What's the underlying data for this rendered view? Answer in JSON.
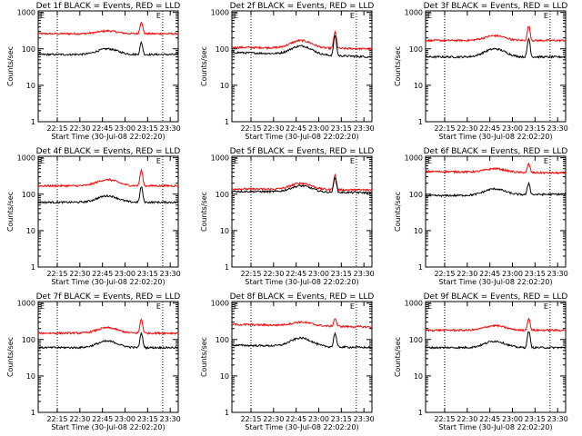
{
  "figure": {
    "xlabel": "Start Time (30-Jul-08 22:02:20)",
    "ylabel": "Counts/sec",
    "x_ticks": [
      "22:15",
      "22:30",
      "22:45",
      "23:00",
      "23:15",
      "23:30"
    ],
    "y_ticks": [
      "1",
      "10",
      "100",
      "1000"
    ]
  },
  "colors": {
    "events": "#000000",
    "lld": "#ff0000"
  },
  "chart_data": [
    {
      "type": "line",
      "title": "Det 1f BLACK = Events, RED = LLD",
      "markers": [
        "E",
        "E"
      ],
      "xlim_min": [
        0,
        93
      ],
      "ylim": [
        1,
        1100
      ],
      "y_scale": "log",
      "lld_base": [
        260,
        260
      ],
      "lld_peak": 310,
      "lld_flare": 560,
      "events_base": [
        70,
        70
      ],
      "events_peak": 100,
      "events_flare": 150
    },
    {
      "type": "line",
      "title": "Det 2f BLACK = Events, RED = LLD",
      "markers": [
        "E",
        "E"
      ],
      "xlim_min": [
        0,
        93
      ],
      "ylim": [
        1,
        1100
      ],
      "y_scale": "log",
      "lld_base": [
        110,
        100
      ],
      "lld_peak": 170,
      "lld_flare": 280,
      "events_base": [
        80,
        60
      ],
      "events_peak": 120,
      "events_flare": 230
    },
    {
      "type": "line",
      "title": "Det 3f BLACK = Events, RED = LLD",
      "markers": [
        "E",
        "E"
      ],
      "xlim_min": [
        0,
        93
      ],
      "ylim": [
        1,
        1100
      ],
      "y_scale": "log",
      "lld_base": [
        170,
        170
      ],
      "lld_peak": 230,
      "lld_flare": 420,
      "events_base": [
        60,
        60
      ],
      "events_peak": 100,
      "events_flare": 190
    },
    {
      "type": "line",
      "title": "Det 4f BLACK = Events, RED = LLD",
      "markers": [
        "E",
        "E"
      ],
      "xlim_min": [
        0,
        93
      ],
      "ylim": [
        1,
        1100
      ],
      "y_scale": "log",
      "lld_base": [
        170,
        170
      ],
      "lld_peak": 250,
      "lld_flare": 450,
      "events_base": [
        60,
        60
      ],
      "events_peak": 90,
      "events_flare": 160
    },
    {
      "type": "line",
      "title": "Det 5f BLACK = Events, RED = LLD",
      "markers": [
        "E",
        "E"
      ],
      "xlim_min": [
        0,
        93
      ],
      "ylim": [
        1,
        1100
      ],
      "y_scale": "log",
      "lld_base": [
        140,
        130
      ],
      "lld_peak": 200,
      "lld_flare": 330,
      "events_base": [
        120,
        110
      ],
      "events_peak": 170,
      "events_flare": 290
    },
    {
      "type": "line",
      "title": "Det 6f BLACK = Events, RED = LLD",
      "markers": [
        "E",
        "E"
      ],
      "xlim_min": [
        0,
        93
      ],
      "ylim": [
        1,
        1100
      ],
      "y_scale": "log",
      "lld_base": [
        420,
        380
      ],
      "lld_peak": 500,
      "lld_flare": 680,
      "events_base": [
        90,
        100
      ],
      "events_peak": 140,
      "events_flare": 200
    },
    {
      "type": "line",
      "title": "Det 7f BLACK = Events, RED = LLD",
      "markers": [
        "E",
        "E"
      ],
      "xlim_min": [
        0,
        93
      ],
      "ylim": [
        1,
        1100
      ],
      "y_scale": "log",
      "lld_base": [
        150,
        150
      ],
      "lld_peak": 210,
      "lld_flare": 360,
      "events_base": [
        60,
        60
      ],
      "events_peak": 90,
      "events_flare": 150
    },
    {
      "type": "line",
      "title": "Det 8f BLACK = Events, RED = LLD",
      "markers": [
        "E",
        "E"
      ],
      "xlim_min": [
        0,
        93
      ],
      "ylim": [
        1,
        1100
      ],
      "y_scale": "log",
      "lld_base": [
        260,
        220
      ],
      "lld_peak": 300,
      "lld_flare": 380,
      "events_base": [
        70,
        60
      ],
      "events_peak": 110,
      "events_flare": 150
    },
    {
      "type": "line",
      "title": "Det 9f BLACK = Events, RED = LLD",
      "markers": [
        "E",
        "E"
      ],
      "xlim_min": [
        0,
        93
      ],
      "ylim": [
        1,
        1100
      ],
      "y_scale": "log",
      "lld_base": [
        180,
        180
      ],
      "lld_peak": 240,
      "lld_flare": 380,
      "events_base": [
        60,
        60
      ],
      "events_peak": 90,
      "events_flare": 170
    }
  ]
}
